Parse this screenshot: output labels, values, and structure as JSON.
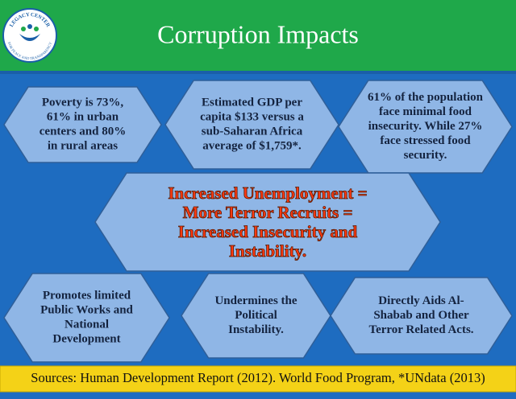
{
  "header": {
    "title": "Corruption Impacts"
  },
  "logo": {
    "top": "LEGACY CENTER",
    "bottom": "FOR PEACE AND TRANSPARENCY"
  },
  "nodes": [
    {
      "lines": [
        "Poverty is 73%,",
        "61% in urban",
        "centers and 80%",
        "in rural areas"
      ]
    },
    {
      "lines": [
        "Estimated GDP per",
        "capita $133 versus a",
        "sub-Saharan Africa",
        "average of $1,759*."
      ]
    },
    {
      "lines": [
        "61% of the population",
        "face minimal food",
        "insecurity. While 27%",
        "face stressed food",
        "security."
      ]
    },
    {
      "lines": [
        "Increased Unemployment =",
        "More Terror Recruits =",
        "Increased Insecurity and",
        "Instability."
      ]
    },
    {
      "lines": [
        "Promotes limited",
        "Public Works and",
        "National",
        "Development"
      ]
    },
    {
      "lines": [
        "Undermines the",
        "Political",
        "Instability."
      ]
    },
    {
      "lines": [
        "Directly Aids Al-",
        "Shabab and Other",
        "Terror Related Acts."
      ]
    }
  ],
  "footer": {
    "sources": "Sources: Human Development Report (2012). World Food Program, *UNdata (2013)"
  }
}
